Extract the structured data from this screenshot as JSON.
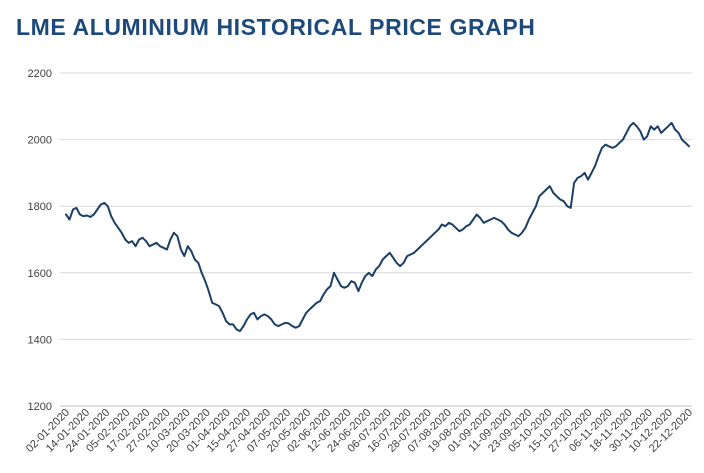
{
  "page": {
    "title": "LME ALUMINIUM HISTORICAL PRICE GRAPH"
  },
  "chart_data": {
    "type": "line",
    "title": "LME ALUMINIUM HISTORICAL PRICE GRAPH",
    "xlabel": "",
    "ylabel": "",
    "ylim": [
      1200,
      2200
    ],
    "yticks": [
      1200,
      1400,
      1600,
      1800,
      2000,
      2200
    ],
    "grid": "horizontal",
    "colors": {
      "series": "#1b3f66",
      "title": "#1d4a7a",
      "grid": "#d9d9d9"
    },
    "xticks": [
      "02-01-2020",
      "14-01-2020",
      "24-01-2020",
      "05-02-2020",
      "17-02-2020",
      "27-02-2020",
      "10-03-2020",
      "20-03-2020",
      "01-04-2020",
      "15-04-2020",
      "27-04-2020",
      "07-05-2020",
      "20-05-2020",
      "02-06-2020",
      "12-06-2020",
      "24-06-2020",
      "06-07-2020",
      "16-07-2020",
      "28-07-2020",
      "07-08-2020",
      "19-08-2020",
      "01-09-2020",
      "11-09-2020",
      "23-09-2020",
      "05-10-2020",
      "15-10-2020",
      "27-10-2020",
      "06-11-2020",
      "18-11-2020",
      "30-11-2020",
      "10-12-2020",
      "22-12-2020"
    ],
    "series": [
      {
        "values": [
          1775,
          1760,
          1790,
          1795,
          1775,
          1770,
          1772,
          1768,
          1775,
          1790,
          1805,
          1810,
          1800,
          1770,
          1750,
          1735,
          1720,
          1700,
          1690,
          1695,
          1680,
          1700,
          1705,
          1695,
          1680,
          1685,
          1690,
          1680,
          1675,
          1670,
          1700,
          1720,
          1710,
          1670,
          1650,
          1680,
          1665,
          1640,
          1630,
          1600,
          1575,
          1545,
          1510,
          1505,
          1500,
          1480,
          1455,
          1445,
          1445,
          1430,
          1425,
          1440,
          1460,
          1475,
          1480,
          1460,
          1470,
          1475,
          1470,
          1460,
          1445,
          1440,
          1445,
          1450,
          1448,
          1440,
          1435,
          1440,
          1460,
          1480,
          1490,
          1500,
          1510,
          1515,
          1535,
          1550,
          1560,
          1600,
          1580,
          1560,
          1555,
          1560,
          1575,
          1570,
          1545,
          1570,
          1590,
          1600,
          1590,
          1610,
          1620,
          1640,
          1650,
          1660,
          1645,
          1630,
          1620,
          1630,
          1650,
          1655,
          1660,
          1670,
          1680,
          1690,
          1700,
          1710,
          1720,
          1730,
          1745,
          1740,
          1750,
          1745,
          1735,
          1725,
          1730,
          1740,
          1745,
          1760,
          1775,
          1765,
          1750,
          1755,
          1760,
          1765,
          1760,
          1755,
          1745,
          1730,
          1720,
          1715,
          1710,
          1720,
          1735,
          1760,
          1780,
          1800,
          1830,
          1840,
          1850,
          1860,
          1840,
          1830,
          1820,
          1815,
          1800,
          1795,
          1870,
          1885,
          1890,
          1900,
          1880,
          1900,
          1920,
          1950,
          1975,
          1985,
          1980,
          1975,
          1980,
          1990,
          2000,
          2020,
          2040,
          2050,
          2040,
          2025,
          2000,
          2010,
          2040,
          2030,
          2040,
          2020,
          2030,
          2040,
          2050,
          2030,
          2020,
          2000,
          1990,
          1980
        ]
      }
    ]
  }
}
